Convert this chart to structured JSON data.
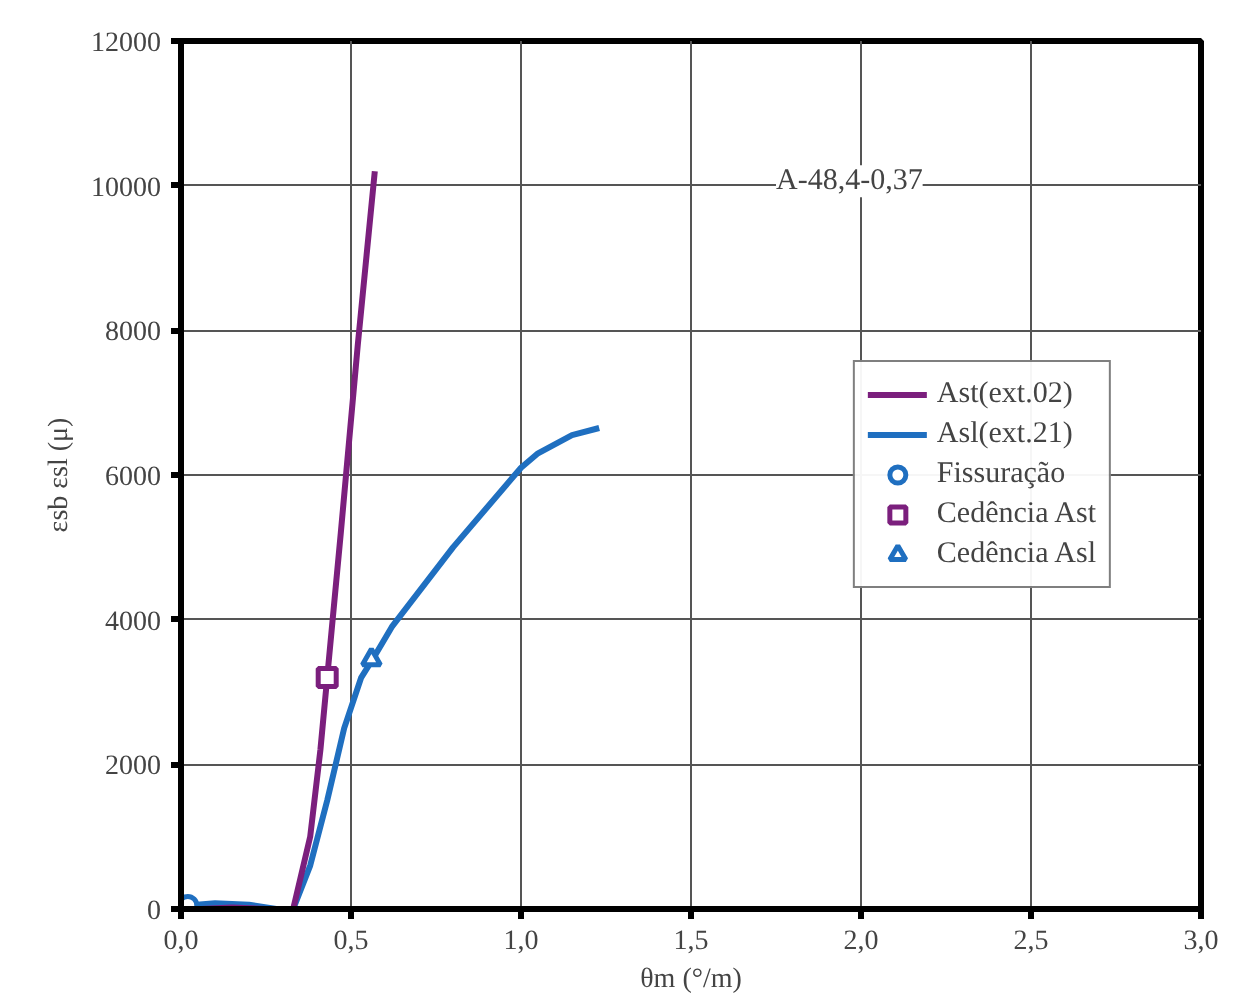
{
  "chart_data": {
    "type": "line",
    "xlabel": "θm (°/m)",
    "ylabel": "εsb εsl (μ)",
    "annotations": [
      "A-48,4-0,37"
    ],
    "xlim": [
      0,
      3
    ],
    "ylim": [
      0,
      12000
    ],
    "xticks": [
      {
        "value": 0,
        "label": "0,0"
      },
      {
        "value": 0.5,
        "label": "0,5"
      },
      {
        "value": 1,
        "label": "1,0"
      },
      {
        "value": 1.5,
        "label": "1,5"
      },
      {
        "value": 2,
        "label": "2,0"
      },
      {
        "value": 2.5,
        "label": "2,5"
      },
      {
        "value": 3,
        "label": "3,0"
      }
    ],
    "yticks": [
      0,
      2000,
      4000,
      6000,
      8000,
      10000,
      12000
    ],
    "grid": true,
    "legend": "right",
    "line_style": "solid",
    "series": [
      {
        "name": "Ast(ext.02)",
        "color": "#7b1f7d",
        "x": [
          0.06,
          0.15,
          0.25,
          0.33,
          0.38,
          0.41,
          0.43,
          0.47,
          0.52,
          0.57
        ],
        "values": [
          0,
          20,
          0,
          0,
          1000,
          2200,
          3200,
          5200,
          7800,
          10200
        ]
      },
      {
        "name": "Asl(ext.21)",
        "color": "#1f6fc0",
        "x": [
          0.02,
          0.1,
          0.2,
          0.28,
          0.33,
          0.38,
          0.43,
          0.48,
          0.53,
          0.57,
          0.62,
          0.8,
          1.0,
          1.05,
          1.15,
          1.23
        ],
        "values": [
          50,
          80,
          60,
          0,
          0,
          600,
          1500,
          2500,
          3200,
          3500,
          3900,
          5000,
          6100,
          6300,
          6550,
          6650
        ]
      },
      {
        "name": "Fissuração",
        "type": "scatter",
        "marker": "circle",
        "color": "#1f6fc0",
        "x": [
          0.02
        ],
        "values": [
          50
        ]
      },
      {
        "name": "Cedência Ast",
        "type": "scatter",
        "marker": "square",
        "color": "#7b1f7d",
        "x": [
          0.43
        ],
        "values": [
          3200
        ]
      },
      {
        "name": "Cedência Asl",
        "type": "scatter",
        "marker": "triangle",
        "color": "#1f6fc0",
        "x": [
          0.56
        ],
        "values": [
          3450
        ]
      }
    ]
  }
}
